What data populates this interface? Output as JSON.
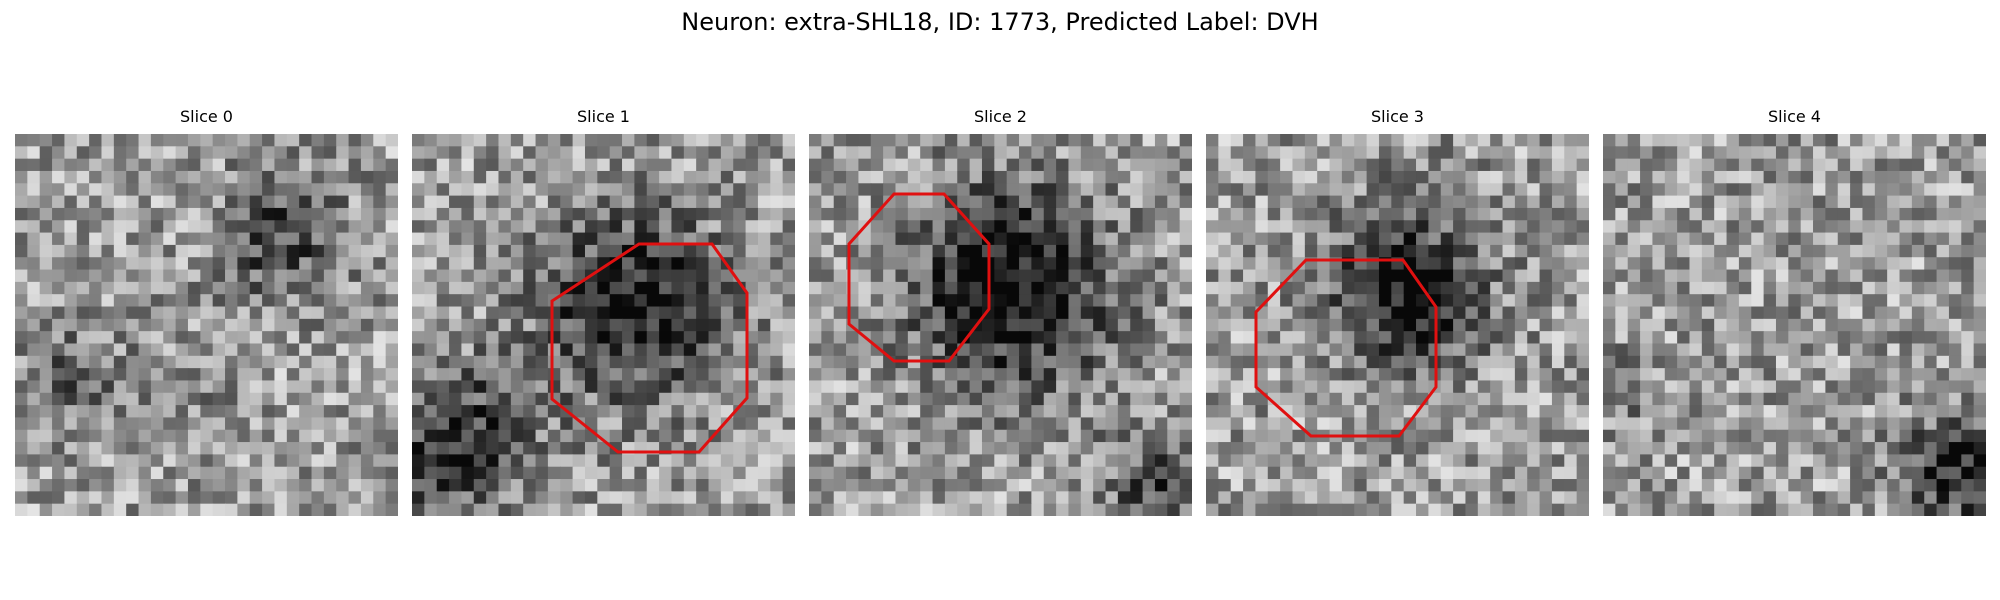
{
  "figure": {
    "title": "Neuron: extra-SHL18, ID: 1773, Predicted Label: DVH",
    "outline_color": "#e01010"
  },
  "panels": [
    {
      "title": "Slice 0",
      "seed": 11,
      "has_outline": false
    },
    {
      "title": "Slice 1",
      "seed": 23,
      "has_outline": true
    },
    {
      "title": "Slice 2",
      "seed": 37,
      "has_outline": true
    },
    {
      "title": "Slice 3",
      "seed": 41,
      "has_outline": true
    },
    {
      "title": "Slice 4",
      "seed": 59,
      "has_outline": false
    }
  ]
}
